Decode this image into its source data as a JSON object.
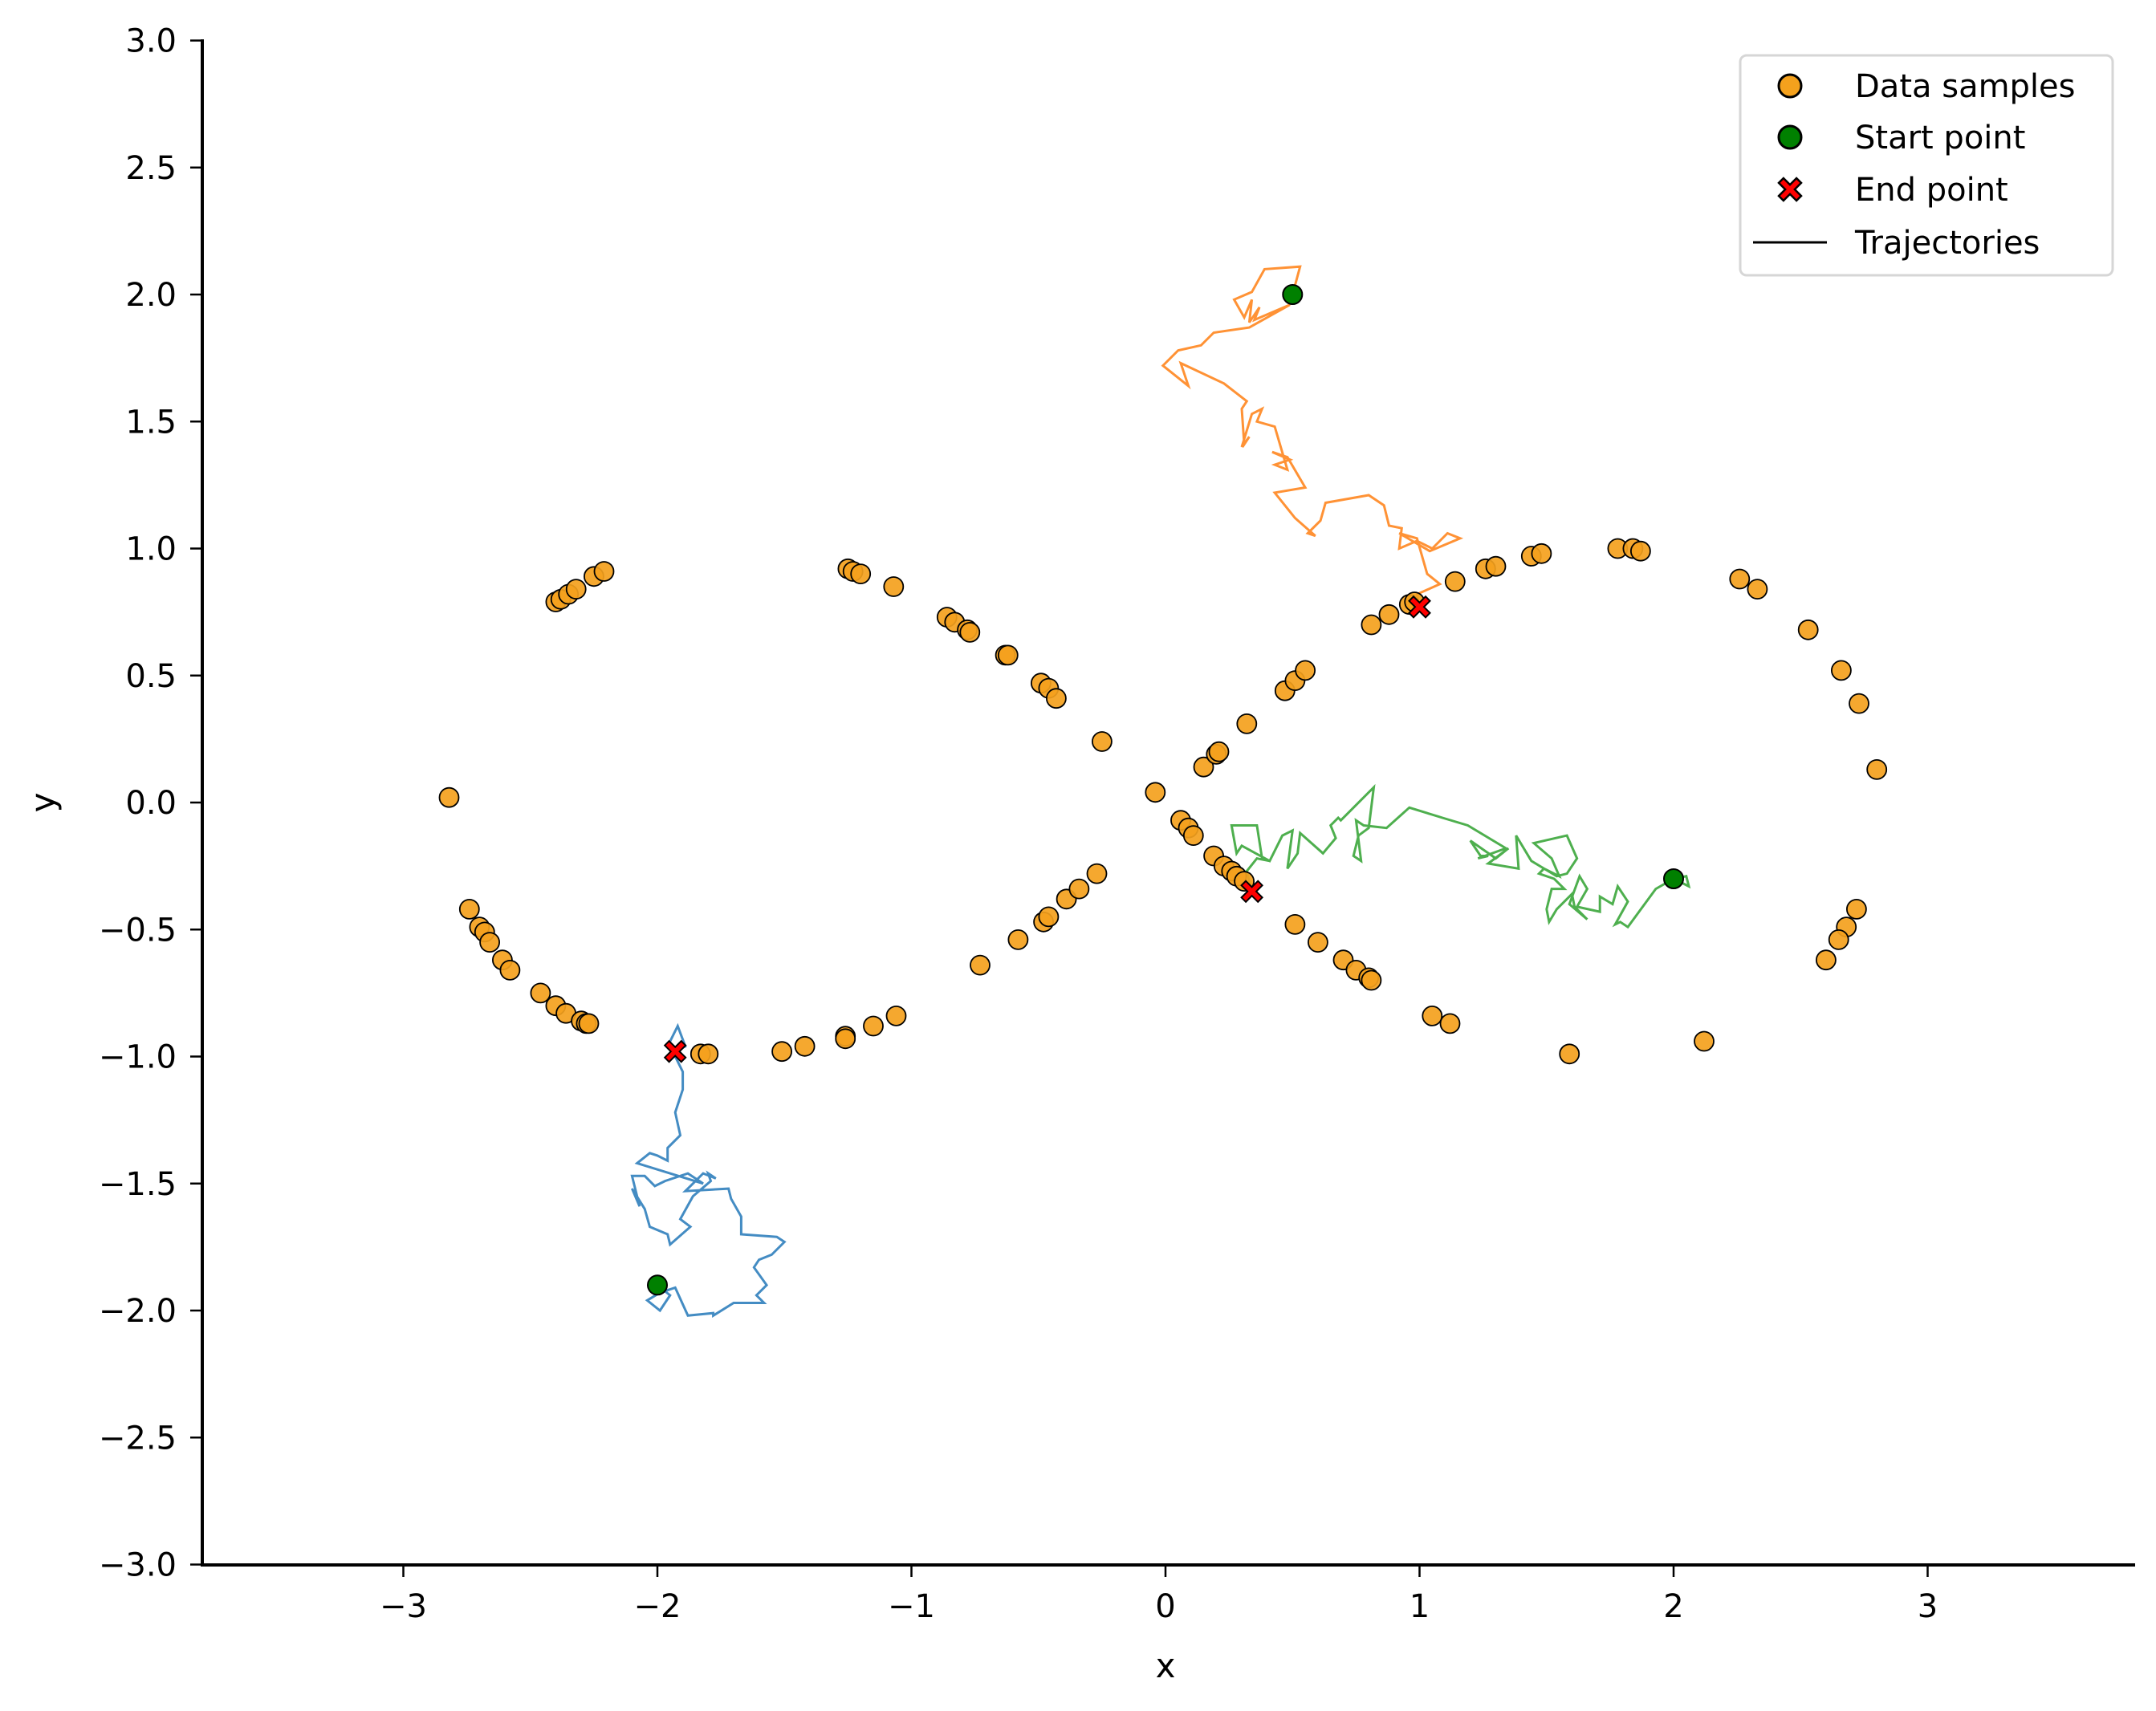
{
  "chart_data": {
    "type": "scatter",
    "title": "",
    "xlabel": "x",
    "ylabel": "y",
    "xlim": [
      -3.8,
      3.8
    ],
    "ylim": [
      -3.0,
      3.0
    ],
    "grid": false,
    "legend_position": "upper right",
    "xticks": [
      -3,
      -2,
      -1,
      0,
      1,
      2,
      3
    ],
    "xtick_labels": [
      "−3",
      "−2",
      "−1",
      "0",
      "1",
      "2",
      "3"
    ],
    "yticks": [
      3.0,
      2.5,
      2.0,
      1.5,
      1.0,
      0.5,
      0.0,
      -0.5,
      -1.0,
      -1.5,
      -2.0,
      -2.5,
      -3.0
    ],
    "ytick_labels": [
      "3.0",
      "2.5",
      "2.0",
      "1.5",
      "1.0",
      "0.5",
      "0.0",
      "−0.5",
      "−1.0",
      "−1.5",
      "−2.0",
      "−2.5",
      "−3.0"
    ],
    "legend": [
      {
        "label": "Data samples",
        "marker": "circle",
        "color": "#f4a11d"
      },
      {
        "label": "Start point",
        "marker": "circle",
        "color": "#008000"
      },
      {
        "label": "End point",
        "marker": "x-filled",
        "color": "#ff0000"
      },
      {
        "label": "Trajectories",
        "marker": "line",
        "color": "#000000"
      }
    ],
    "colors": {
      "data_samples": "#f4a11d",
      "start_point": "#008000",
      "end_point": "#ff0000",
      "traj_blue": "#3a86c0",
      "traj_orange": "#ff8c2a",
      "traj_green": "#44ab44"
    },
    "series": [
      {
        "name": "Data samples",
        "points": [
          [
            -2.82,
            0.02
          ],
          [
            -2.74,
            -0.42
          ],
          [
            -2.7,
            -0.49
          ],
          [
            -2.68,
            -0.51
          ],
          [
            -2.66,
            -0.55
          ],
          [
            -2.61,
            -0.62
          ],
          [
            -2.58,
            -0.66
          ],
          [
            -2.46,
            -0.75
          ],
          [
            -2.4,
            -0.8
          ],
          [
            -2.36,
            -0.83
          ],
          [
            -2.3,
            -0.86
          ],
          [
            -2.28,
            -0.87
          ],
          [
            -2.27,
            -0.87
          ],
          [
            -2.4,
            0.79
          ],
          [
            -2.38,
            0.8
          ],
          [
            -2.35,
            0.82
          ],
          [
            -2.32,
            0.84
          ],
          [
            -2.25,
            0.89
          ],
          [
            -2.21,
            0.91
          ],
          [
            -1.83,
            -0.99
          ],
          [
            -1.8,
            -0.99
          ],
          [
            -1.51,
            -0.98
          ],
          [
            -1.42,
            -0.96
          ],
          [
            -1.26,
            -0.92
          ],
          [
            -1.26,
            -0.93
          ],
          [
            -1.15,
            -0.88
          ],
          [
            -1.06,
            -0.84
          ],
          [
            -1.25,
            0.92
          ],
          [
            -1.23,
            0.91
          ],
          [
            -1.2,
            0.9
          ],
          [
            -1.07,
            0.85
          ],
          [
            -0.86,
            0.73
          ],
          [
            -0.83,
            0.71
          ],
          [
            -0.78,
            0.68
          ],
          [
            -0.77,
            0.67
          ],
          [
            -0.63,
            0.58
          ],
          [
            -0.62,
            0.58
          ],
          [
            -0.49,
            0.47
          ],
          [
            -0.46,
            0.45
          ],
          [
            -0.43,
            0.41
          ],
          [
            -0.73,
            -0.64
          ],
          [
            -0.58,
            -0.54
          ],
          [
            -0.48,
            -0.47
          ],
          [
            -0.46,
            -0.45
          ],
          [
            -0.39,
            -0.38
          ],
          [
            -0.34,
            -0.34
          ],
          [
            -0.27,
            -0.28
          ],
          [
            -0.25,
            0.24
          ],
          [
            -0.04,
            0.04
          ],
          [
            0.06,
            -0.07
          ],
          [
            0.09,
            -0.1
          ],
          [
            0.11,
            -0.13
          ],
          [
            0.19,
            -0.21
          ],
          [
            0.23,
            -0.25
          ],
          [
            0.26,
            -0.27
          ],
          [
            0.28,
            -0.29
          ],
          [
            0.31,
            -0.31
          ],
          [
            0.15,
            0.14
          ],
          [
            0.2,
            0.19
          ],
          [
            0.21,
            0.2
          ],
          [
            0.32,
            0.31
          ],
          [
            0.47,
            0.44
          ],
          [
            0.51,
            0.48
          ],
          [
            0.55,
            0.52
          ],
          [
            0.51,
            -0.48
          ],
          [
            0.6,
            -0.55
          ],
          [
            0.7,
            -0.62
          ],
          [
            0.75,
            -0.66
          ],
          [
            0.8,
            -0.69
          ],
          [
            0.81,
            -0.7
          ],
          [
            0.81,
            0.7
          ],
          [
            0.88,
            0.74
          ],
          [
            0.96,
            0.78
          ],
          [
            0.98,
            0.79
          ],
          [
            1.14,
            0.87
          ],
          [
            1.26,
            0.92
          ],
          [
            1.3,
            0.93
          ],
          [
            1.44,
            0.97
          ],
          [
            1.48,
            0.98
          ],
          [
            1.05,
            -0.84
          ],
          [
            1.12,
            -0.87
          ],
          [
            1.78,
            1.0
          ],
          [
            1.84,
            1.0
          ],
          [
            1.87,
            0.99
          ],
          [
            2.26,
            0.88
          ],
          [
            2.33,
            0.84
          ],
          [
            2.53,
            0.68
          ],
          [
            2.66,
            0.52
          ],
          [
            2.73,
            0.39
          ],
          [
            2.8,
            0.13
          ],
          [
            1.59,
            -0.99
          ],
          [
            2.12,
            -0.94
          ],
          [
            2.72,
            -0.42
          ],
          [
            2.68,
            -0.49
          ],
          [
            2.65,
            -0.54
          ],
          [
            2.6,
            -0.62
          ]
        ]
      },
      {
        "name": "Start point",
        "points": [
          [
            -2.0,
            -1.9
          ],
          [
            0.5,
            2.0
          ],
          [
            2.0,
            -0.3
          ]
        ]
      },
      {
        "name": "End point",
        "points": [
          [
            -1.93,
            -0.98
          ],
          [
            1.0,
            0.77
          ],
          [
            0.34,
            -0.35
          ]
        ]
      },
      {
        "name": "Trajectory (blue)",
        "color": "#3a86c0",
        "points": [
          [
            -2.0,
            -1.9
          ],
          [
            -1.95,
            -1.94
          ],
          [
            -1.99,
            -2.0
          ],
          [
            -2.04,
            -1.96
          ],
          [
            -1.99,
            -1.93
          ],
          [
            -1.93,
            -1.91
          ],
          [
            -1.88,
            -2.02
          ],
          [
            -1.78,
            -2.01
          ],
          [
            -1.78,
            -2.02
          ],
          [
            -1.7,
            -1.97
          ],
          [
            -1.58,
            -1.97
          ],
          [
            -1.61,
            -1.94
          ],
          [
            -1.57,
            -1.9
          ],
          [
            -1.62,
            -1.83
          ],
          [
            -1.6,
            -1.8
          ],
          [
            -1.55,
            -1.78
          ],
          [
            -1.5,
            -1.73
          ],
          [
            -1.53,
            -1.71
          ],
          [
            -1.67,
            -1.7
          ],
          [
            -1.67,
            -1.63
          ],
          [
            -1.71,
            -1.56
          ],
          [
            -1.72,
            -1.52
          ],
          [
            -1.89,
            -1.53
          ],
          [
            -1.86,
            -1.5
          ],
          [
            -1.82,
            -1.46
          ],
          [
            -1.77,
            -1.48
          ],
          [
            -1.8,
            -1.46
          ],
          [
            -1.79,
            -1.49
          ],
          [
            -1.86,
            -1.55
          ],
          [
            -1.91,
            -1.64
          ],
          [
            -1.87,
            -1.67
          ],
          [
            -1.95,
            -1.74
          ],
          [
            -1.96,
            -1.7
          ],
          [
            -2.03,
            -1.67
          ],
          [
            -2.05,
            -1.6
          ],
          [
            -2.1,
            -1.52
          ],
          [
            -2.07,
            -1.59
          ],
          [
            -2.1,
            -1.47
          ],
          [
            -2.05,
            -1.47
          ],
          [
            -2.01,
            -1.51
          ],
          [
            -1.97,
            -1.49
          ],
          [
            -1.88,
            -1.46
          ],
          [
            -1.82,
            -1.5
          ],
          [
            -2.08,
            -1.42
          ],
          [
            -2.03,
            -1.38
          ],
          [
            -2.0,
            -1.39
          ],
          [
            -1.96,
            -1.41
          ],
          [
            -1.96,
            -1.36
          ],
          [
            -1.91,
            -1.31
          ],
          [
            -1.93,
            -1.22
          ],
          [
            -1.9,
            -1.13
          ],
          [
            -1.9,
            -1.06
          ],
          [
            -1.93,
            -1.0
          ],
          [
            -1.96,
            -0.96
          ],
          [
            -1.92,
            -0.88
          ],
          [
            -1.89,
            -0.96
          ],
          [
            -1.93,
            -0.98
          ]
        ]
      },
      {
        "name": "Trajectory (orange)",
        "color": "#ff8c2a",
        "points": [
          [
            0.5,
            2.0
          ],
          [
            0.53,
            2.11
          ],
          [
            0.39,
            2.1
          ],
          [
            0.34,
            2.01
          ],
          [
            0.27,
            1.98
          ],
          [
            0.31,
            1.91
          ],
          [
            0.34,
            1.98
          ],
          [
            0.33,
            1.89
          ],
          [
            0.37,
            1.95
          ],
          [
            0.35,
            1.9
          ],
          [
            0.49,
            1.96
          ],
          [
            0.33,
            1.87
          ],
          [
            0.19,
            1.85
          ],
          [
            0.14,
            1.8
          ],
          [
            0.05,
            1.78
          ],
          [
            -0.01,
            1.72
          ],
          [
            0.09,
            1.64
          ],
          [
            0.06,
            1.73
          ],
          [
            0.23,
            1.65
          ],
          [
            0.32,
            1.58
          ],
          [
            0.3,
            1.55
          ],
          [
            0.31,
            1.41
          ],
          [
            0.33,
            1.44
          ],
          [
            0.3,
            1.4
          ],
          [
            0.34,
            1.53
          ],
          [
            0.38,
            1.55
          ],
          [
            0.36,
            1.5
          ],
          [
            0.43,
            1.48
          ],
          [
            0.48,
            1.31
          ],
          [
            0.43,
            1.33
          ],
          [
            0.49,
            1.35
          ],
          [
            0.42,
            1.38
          ],
          [
            0.48,
            1.36
          ],
          [
            0.55,
            1.24
          ],
          [
            0.43,
            1.22
          ],
          [
            0.51,
            1.12
          ],
          [
            0.59,
            1.05
          ],
          [
            0.56,
            1.06
          ],
          [
            0.61,
            1.11
          ],
          [
            0.63,
            1.18
          ],
          [
            0.8,
            1.21
          ],
          [
            0.86,
            1.17
          ],
          [
            0.88,
            1.09
          ],
          [
            0.93,
            1.08
          ],
          [
            0.92,
            1.0
          ],
          [
            0.99,
            1.03
          ],
          [
            1.05,
            1.0
          ],
          [
            1.11,
            1.06
          ],
          [
            1.16,
            1.04
          ],
          [
            1.04,
            0.99
          ],
          [
            0.92,
            1.06
          ],
          [
            0.99,
            1.04
          ],
          [
            1.03,
            0.9
          ],
          [
            1.08,
            0.86
          ],
          [
            0.99,
            0.82
          ],
          [
            1.0,
            0.77
          ]
        ]
      },
      {
        "name": "Trajectory (green)",
        "color": "#44ab44",
        "points": [
          [
            2.0,
            -0.3
          ],
          [
            2.05,
            -0.29
          ],
          [
            2.06,
            -0.33
          ],
          [
            2.0,
            -0.3
          ],
          [
            1.93,
            -0.34
          ],
          [
            1.82,
            -0.49
          ],
          [
            1.79,
            -0.47
          ],
          [
            1.77,
            -0.48
          ],
          [
            1.82,
            -0.39
          ],
          [
            1.78,
            -0.33
          ],
          [
            1.76,
            -0.4
          ],
          [
            1.71,
            -0.37
          ],
          [
            1.71,
            -0.43
          ],
          [
            1.62,
            -0.41
          ],
          [
            1.66,
            -0.34
          ],
          [
            1.63,
            -0.29
          ],
          [
            1.59,
            -0.4
          ],
          [
            1.66,
            -0.46
          ],
          [
            1.61,
            -0.41
          ],
          [
            1.6,
            -0.36
          ],
          [
            1.54,
            -0.42
          ],
          [
            1.51,
            -0.47
          ],
          [
            1.5,
            -0.42
          ],
          [
            1.52,
            -0.34
          ],
          [
            1.57,
            -0.34
          ],
          [
            1.53,
            -0.3
          ],
          [
            1.47,
            -0.28
          ],
          [
            1.49,
            -0.26
          ],
          [
            1.55,
            -0.29
          ],
          [
            1.52,
            -0.22
          ],
          [
            1.45,
            -0.16
          ],
          [
            1.58,
            -0.13
          ],
          [
            1.62,
            -0.22
          ],
          [
            1.58,
            -0.28
          ],
          [
            1.54,
            -0.29
          ],
          [
            1.44,
            -0.23
          ],
          [
            1.38,
            -0.13
          ],
          [
            1.39,
            -0.26
          ],
          [
            1.27,
            -0.24
          ],
          [
            1.35,
            -0.18
          ],
          [
            1.3,
            -0.22
          ],
          [
            1.2,
            -0.15
          ],
          [
            1.24,
            -0.21
          ],
          [
            1.27,
            -0.21
          ],
          [
            1.23,
            -0.22
          ],
          [
            1.34,
            -0.18
          ],
          [
            1.19,
            -0.09
          ],
          [
            1.09,
            -0.06
          ],
          [
            0.96,
            -0.02
          ],
          [
            0.87,
            -0.1
          ],
          [
            0.78,
            -0.09
          ],
          [
            0.75,
            -0.07
          ],
          [
            0.77,
            -0.23
          ],
          [
            0.74,
            -0.21
          ],
          [
            0.76,
            -0.13
          ],
          [
            0.8,
            -0.1
          ],
          [
            0.82,
            0.06
          ],
          [
            0.72,
            -0.04
          ],
          [
            0.69,
            -0.07
          ],
          [
            0.68,
            -0.06
          ],
          [
            0.65,
            -0.09
          ],
          [
            0.67,
            -0.14
          ],
          [
            0.62,
            -0.2
          ],
          [
            0.53,
            -0.12
          ],
          [
            0.52,
            -0.2
          ],
          [
            0.48,
            -0.26
          ],
          [
            0.5,
            -0.11
          ],
          [
            0.46,
            -0.13
          ],
          [
            0.41,
            -0.23
          ],
          [
            0.3,
            -0.17
          ],
          [
            0.28,
            -0.2
          ],
          [
            0.26,
            -0.09
          ],
          [
            0.36,
            -0.09
          ],
          [
            0.38,
            -0.22
          ],
          [
            0.41,
            -0.23
          ],
          [
            0.36,
            -0.22
          ],
          [
            0.32,
            -0.27
          ],
          [
            0.34,
            -0.35
          ]
        ]
      }
    ]
  }
}
